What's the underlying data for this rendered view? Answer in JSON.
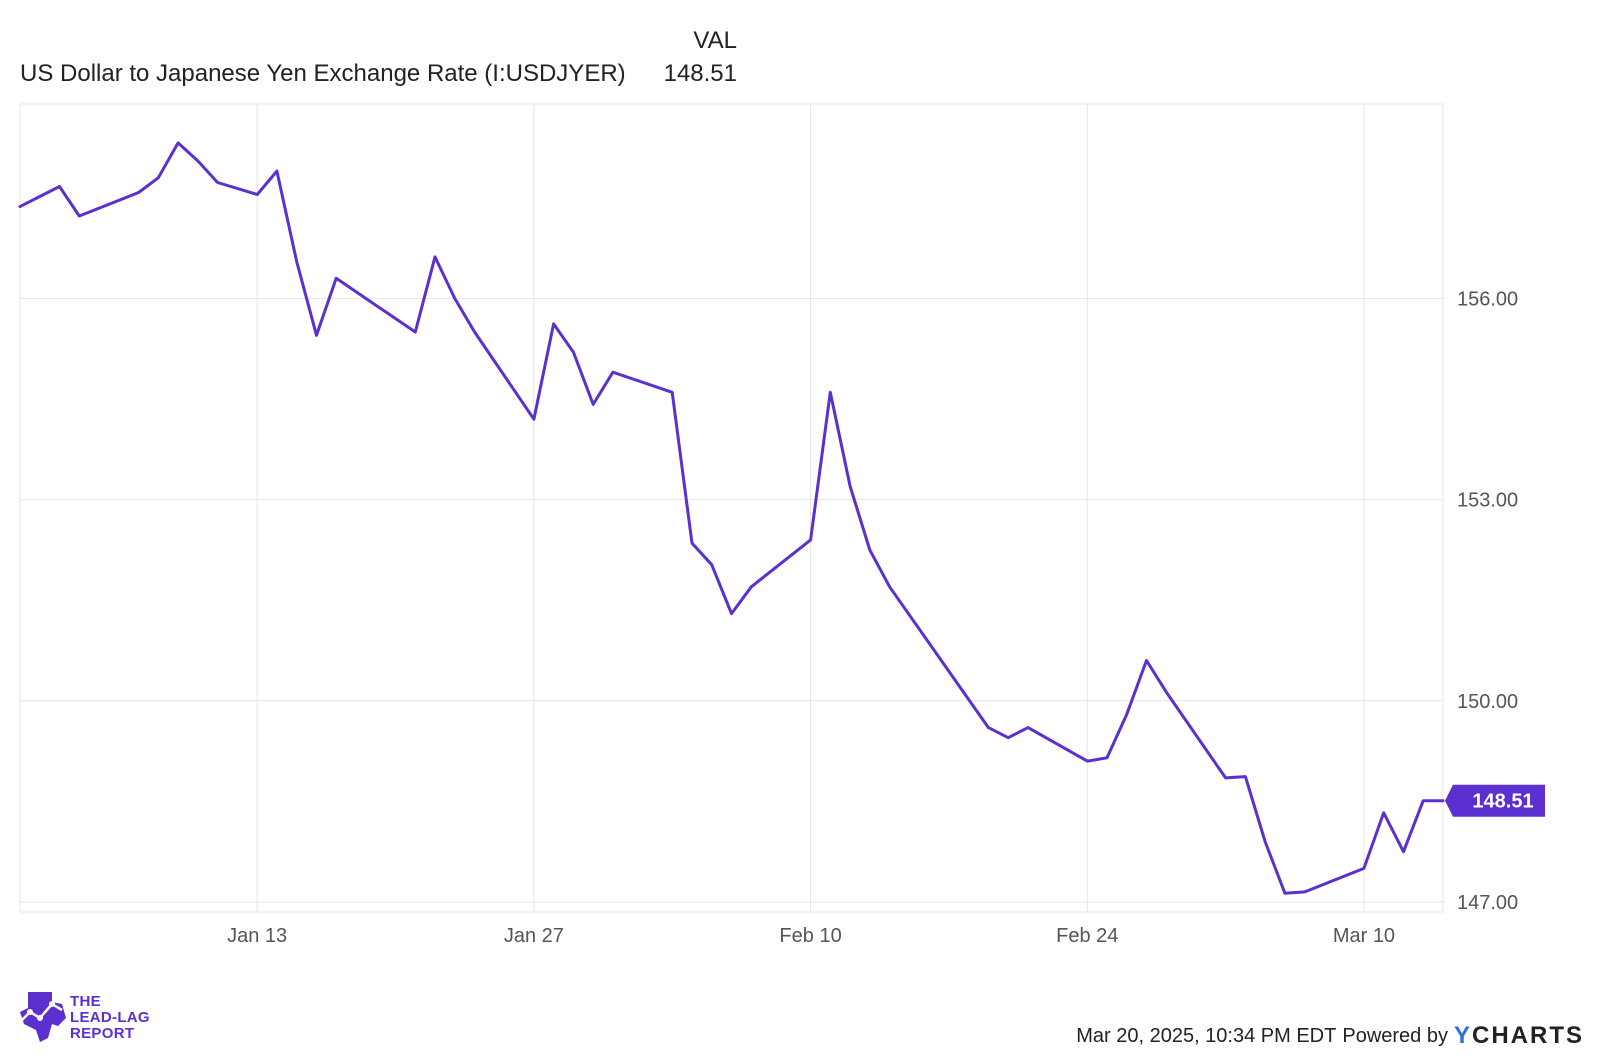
{
  "header": {
    "val_label": "VAL",
    "series_name": "US Dollar to Japanese Yen Exchange Rate (I:USDJYER)",
    "current_value": "148.51"
  },
  "footer": {
    "timestamp": "Mar 20, 2025, 10:34 PM EDT",
    "powered_by": "Powered by",
    "brand": "YCHARTS"
  },
  "logo": {
    "line1": "THE",
    "line2": "LEAD-LAG",
    "line3": "REPORT"
  },
  "colors": {
    "line": "#5b2fd0",
    "grid": "#e6e6e6",
    "axis_text": "#555555"
  },
  "chart_data": {
    "type": "line",
    "title": "",
    "xlabel": "",
    "ylabel": "",
    "grid": true,
    "y_axis_side": "right",
    "ylim": [
      146.85,
      158.9
    ],
    "yticks": [
      147.0,
      150.0,
      153.0,
      156.0
    ],
    "ytick_labels": [
      "147.00",
      "150.00",
      "153.00",
      "156.00"
    ],
    "xticks": [
      "2025-01-13",
      "2025-01-27",
      "2025-02-10",
      "2025-02-24",
      "2025-03-10"
    ],
    "xtick_labels": [
      "Jan 13",
      "Jan 27",
      "Feb 10",
      "Feb 24",
      "Mar 10"
    ],
    "xlim": [
      "2025-01-01",
      "2025-03-14"
    ],
    "last_value_badge": "148.51",
    "series": [
      {
        "x": [
          "2025-01-01",
          "2025-01-03",
          "2025-01-04",
          "2025-01-07",
          "2025-01-08",
          "2025-01-09",
          "2025-01-10",
          "2025-01-11",
          "2025-01-13",
          "2025-01-14",
          "2025-01-15",
          "2025-01-16",
          "2025-01-17",
          "2025-01-21",
          "2025-01-22",
          "2025-01-23",
          "2025-01-24",
          "2025-01-27",
          "2025-01-28",
          "2025-01-29",
          "2025-01-30",
          "2025-01-31",
          "2025-02-03",
          "2025-02-04",
          "2025-02-05",
          "2025-02-06",
          "2025-02-07",
          "2025-02-10",
          "2025-02-11",
          "2025-02-12",
          "2025-02-13",
          "2025-02-14",
          "2025-02-19",
          "2025-02-20",
          "2025-02-21",
          "2025-02-24",
          "2025-02-25",
          "2025-02-26",
          "2025-02-27",
          "2025-02-28",
          "2025-03-03",
          "2025-03-04",
          "2025-03-05",
          "2025-03-06",
          "2025-03-07",
          "2025-03-10",
          "2025-03-11",
          "2025-03-12",
          "2025-03-13",
          "2025-03-14"
        ],
        "y": [
          157.37,
          157.67,
          157.23,
          157.58,
          157.8,
          158.32,
          158.05,
          157.73,
          157.55,
          157.9,
          156.55,
          155.45,
          156.3,
          155.5,
          156.62,
          156.0,
          155.5,
          154.2,
          155.62,
          155.2,
          154.42,
          154.9,
          154.6,
          152.35,
          152.03,
          151.3,
          151.7,
          152.4,
          154.6,
          153.2,
          152.25,
          151.7,
          149.6,
          149.45,
          149.6,
          149.1,
          149.15,
          149.8,
          150.6,
          150.13,
          148.85,
          148.87,
          147.9,
          147.13,
          147.15,
          147.5,
          148.33,
          147.75,
          148.51,
          148.51
        ]
      }
    ]
  }
}
